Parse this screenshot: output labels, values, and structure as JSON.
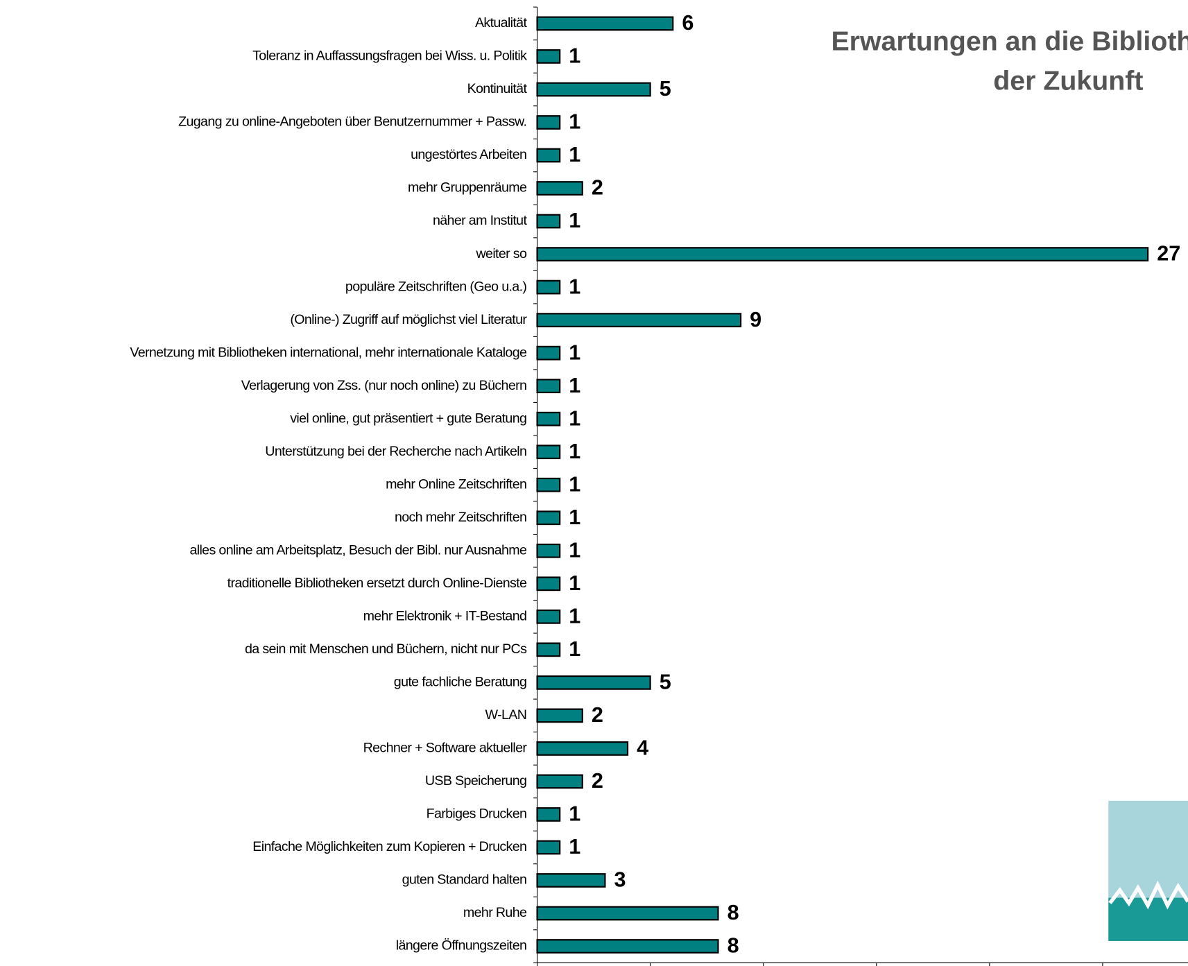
{
  "chart_data": {
    "type": "bar",
    "orientation": "horizontal",
    "title_lines": [
      "Erwartungen an die Bibliothek",
      "der Zukunft"
    ],
    "categories": [
      "Aktualität",
      "Toleranz in Auffassungsfragen bei Wiss. u. Politik",
      "Kontinuität",
      "Zugang zu online-Angeboten über Benutzernummer + Passw.",
      "ungestörtes Arbeiten",
      "mehr Gruppenräume",
      "näher am Institut",
      "weiter so",
      "populäre Zeitschriften (Geo u.a.)",
      "(Online-) Zugriff auf möglichst viel Literatur",
      "Vernetzung mit Bibliotheken international, mehr internationale Kataloge",
      "Verlagerung von Zss. (nur noch online) zu Büchern",
      "viel online, gut präsentiert + gute Beratung",
      "Unterstützung bei der Recherche nach Artikeln",
      "mehr Online Zeitschriften",
      "noch mehr Zeitschriften",
      "alles online am Arbeitsplatz, Besuch der Bibl. nur Ausnahme",
      "traditionelle Bibliotheken ersetzt durch Online-Dienste",
      "mehr Elektronik + IT-Bestand",
      "da sein mit Menschen und Büchern, nicht nur PCs",
      "gute fachliche Beratung",
      "W-LAN",
      "Rechner + Software aktueller",
      "USB Speicherung",
      "Farbiges Drucken",
      "Einfache Möglichkeiten zum Kopieren + Drucken",
      "guten Standard halten",
      "mehr Ruhe",
      "längere Öffnungszeiten"
    ],
    "values": [
      6,
      1,
      5,
      1,
      1,
      2,
      1,
      27,
      1,
      9,
      1,
      1,
      1,
      1,
      1,
      1,
      1,
      1,
      1,
      1,
      5,
      2,
      4,
      2,
      1,
      1,
      3,
      8,
      8
    ],
    "color": "#008080",
    "xlim": [
      0,
      30
    ],
    "xticks": [
      0,
      5,
      10,
      15,
      20,
      25,
      30
    ]
  }
}
